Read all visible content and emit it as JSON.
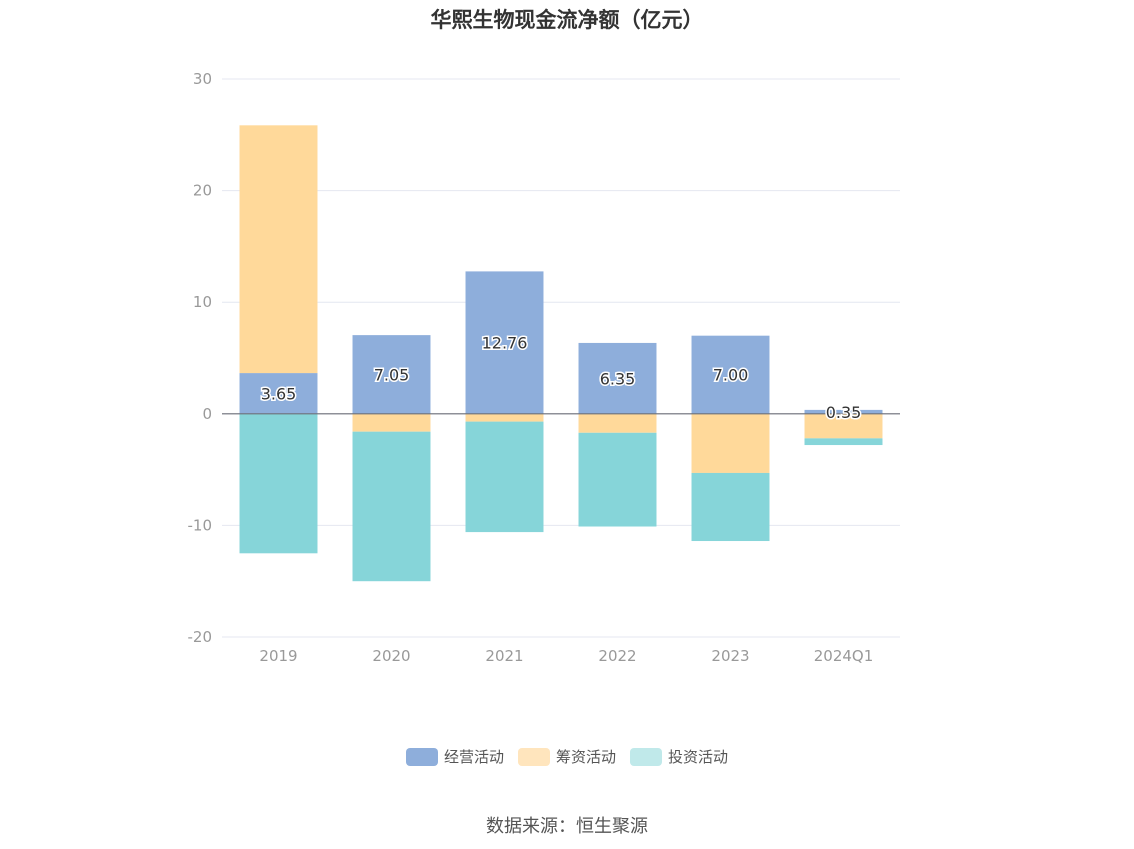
{
  "chart_data": {
    "type": "bar",
    "stacked": true,
    "title": "华熙生物现金流净额（亿元）",
    "categories": [
      "2019",
      "2020",
      "2021",
      "2022",
      "2023",
      "2024Q1"
    ],
    "ylim": [
      -20,
      30
    ],
    "yticks": [
      "30",
      "20",
      "10",
      "0",
      "-10",
      "-20"
    ],
    "grid": true,
    "legend_position": "bottom",
    "series": [
      {
        "name": "经营活动",
        "color": "#8eaedb",
        "values": [
          3.65,
          7.05,
          12.76,
          6.35,
          7.0,
          0.35
        ],
        "labels": [
          "3.65",
          "7.05",
          "12.76",
          "6.35",
          "7.00",
          "0.35"
        ]
      },
      {
        "name": "筹资活动",
        "color": "#ffd99a",
        "values": [
          22.2,
          -1.6,
          -0.7,
          -1.7,
          -5.3,
          -2.2
        ]
      },
      {
        "name": "投资活动",
        "color": "#86d5d9",
        "values": [
          -12.5,
          -13.4,
          -9.9,
          -8.4,
          -6.1,
          -0.6
        ]
      }
    ],
    "legend_colors": [
      "#8eaedb",
      "#ffe5bd",
      "#c0e9ea"
    ]
  },
  "source": "数据来源：恒生聚源"
}
